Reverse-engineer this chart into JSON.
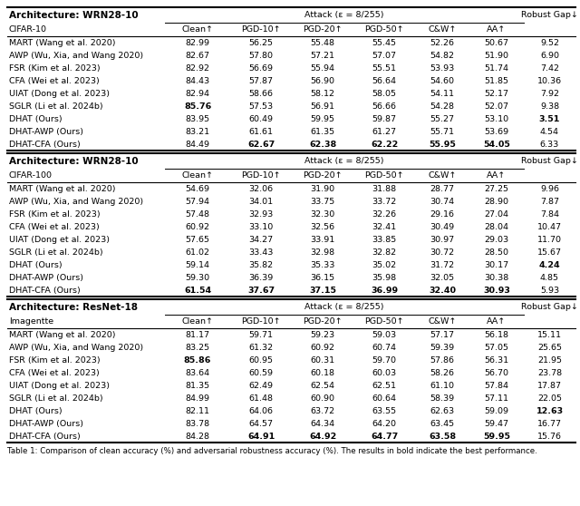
{
  "sections": [
    {
      "arch": "Architecture: WRN28-10",
      "dataset": "CIFAR-10",
      "rows": [
        {
          "method": "MART (Wang et al. 2020)",
          "values": [
            "82.99",
            "56.25",
            "55.48",
            "55.45",
            "52.26",
            "50.67",
            "9.52"
          ],
          "bold": []
        },
        {
          "method": "AWP (Wu, Xia, and Wang 2020)",
          "values": [
            "82.67",
            "57.80",
            "57.21",
            "57.07",
            "54.82",
            "51.90",
            "6.90"
          ],
          "bold": []
        },
        {
          "method": "FSR (Kim et al. 2023)",
          "values": [
            "82.92",
            "56.69",
            "55.94",
            "55.51",
            "53.93",
            "51.74",
            "7.42"
          ],
          "bold": []
        },
        {
          "method": "CFA (Wei et al. 2023)",
          "values": [
            "84.43",
            "57.87",
            "56.90",
            "56.64",
            "54.60",
            "51.85",
            "10.36"
          ],
          "bold": []
        },
        {
          "method": "UIAT (Dong et al. 2023)",
          "values": [
            "82.94",
            "58.66",
            "58.12",
            "58.05",
            "54.11",
            "52.17",
            "7.92"
          ],
          "bold": []
        },
        {
          "method": "SGLR (Li et al. 2024b)",
          "values": [
            "85.76",
            "57.53",
            "56.91",
            "56.66",
            "54.28",
            "52.07",
            "9.38"
          ],
          "bold": [
            0
          ]
        },
        {
          "method": "DHAT (Ours)",
          "values": [
            "83.95",
            "60.49",
            "59.95",
            "59.87",
            "55.27",
            "53.10",
            "3.51"
          ],
          "bold": [
            6
          ]
        },
        {
          "method": "DHAT-AWP (Ours)",
          "values": [
            "83.21",
            "61.61",
            "61.35",
            "61.27",
            "55.71",
            "53.69",
            "4.54"
          ],
          "bold": []
        },
        {
          "method": "DHAT-CFA (Ours)",
          "values": [
            "84.49",
            "62.67",
            "62.38",
            "62.22",
            "55.95",
            "54.05",
            "6.33"
          ],
          "bold": [
            1,
            2,
            3,
            4,
            5
          ]
        }
      ]
    },
    {
      "arch": "Architecture: WRN28-10",
      "dataset": "CIFAR-100",
      "rows": [
        {
          "method": "MART (Wang et al. 2020)",
          "values": [
            "54.69",
            "32.06",
            "31.90",
            "31.88",
            "28.77",
            "27.25",
            "9.96"
          ],
          "bold": []
        },
        {
          "method": "AWP (Wu, Xia, and Wang 2020)",
          "values": [
            "57.94",
            "34.01",
            "33.75",
            "33.72",
            "30.74",
            "28.90",
            "7.87"
          ],
          "bold": []
        },
        {
          "method": "FSR (Kim et al. 2023)",
          "values": [
            "57.48",
            "32.93",
            "32.30",
            "32.26",
            "29.16",
            "27.04",
            "7.84"
          ],
          "bold": []
        },
        {
          "method": "CFA (Wei et al. 2023)",
          "values": [
            "60.92",
            "33.10",
            "32.56",
            "32.41",
            "30.49",
            "28.04",
            "10.47"
          ],
          "bold": []
        },
        {
          "method": "UIAT (Dong et al. 2023)",
          "values": [
            "57.65",
            "34.27",
            "33.91",
            "33.85",
            "30.97",
            "29.03",
            "11.70"
          ],
          "bold": []
        },
        {
          "method": "SGLR (Li et al. 2024b)",
          "values": [
            "61.02",
            "33.43",
            "32.98",
            "32.82",
            "30.72",
            "28.50",
            "15.67"
          ],
          "bold": []
        },
        {
          "method": "DHAT (Ours)",
          "values": [
            "59.14",
            "35.82",
            "35.33",
            "35.02",
            "31.72",
            "30.17",
            "4.24"
          ],
          "bold": [
            6
          ]
        },
        {
          "method": "DHAT-AWP (Ours)",
          "values": [
            "59.30",
            "36.39",
            "36.15",
            "35.98",
            "32.05",
            "30.38",
            "4.85"
          ],
          "bold": []
        },
        {
          "method": "DHAT-CFA (Ours)",
          "values": [
            "61.54",
            "37.67",
            "37.15",
            "36.99",
            "32.40",
            "30.93",
            "5.93"
          ],
          "bold": [
            0,
            1,
            2,
            3,
            4,
            5
          ]
        }
      ]
    },
    {
      "arch": "Architecture: ResNet-18",
      "dataset": "Imagentte",
      "rows": [
        {
          "method": "MART (Wang et al. 2020)",
          "values": [
            "81.17",
            "59.71",
            "59.23",
            "59.03",
            "57.17",
            "56.18",
            "15.11"
          ],
          "bold": []
        },
        {
          "method": "AWP (Wu, Xia, and Wang 2020)",
          "values": [
            "83.25",
            "61.32",
            "60.92",
            "60.74",
            "59.39",
            "57.05",
            "25.65"
          ],
          "bold": []
        },
        {
          "method": "FSR (Kim et al. 2023)",
          "values": [
            "85.86",
            "60.95",
            "60.31",
            "59.70",
            "57.86",
            "56.31",
            "21.95"
          ],
          "bold": [
            0
          ]
        },
        {
          "method": "CFA (Wei et al. 2023)",
          "values": [
            "83.64",
            "60.59",
            "60.18",
            "60.03",
            "58.26",
            "56.70",
            "23.78"
          ],
          "bold": []
        },
        {
          "method": "UIAT (Dong et al. 2023)",
          "values": [
            "81.35",
            "62.49",
            "62.54",
            "62.51",
            "61.10",
            "57.84",
            "17.87"
          ],
          "bold": []
        },
        {
          "method": "SGLR (Li et al. 2024b)",
          "values": [
            "84.99",
            "61.48",
            "60.90",
            "60.64",
            "58.39",
            "57.11",
            "22.05"
          ],
          "bold": []
        },
        {
          "method": "DHAT (Ours)",
          "values": [
            "82.11",
            "64.06",
            "63.72",
            "63.55",
            "62.63",
            "59.09",
            "12.63"
          ],
          "bold": [
            6
          ]
        },
        {
          "method": "DHAT-AWP (Ours)",
          "values": [
            "83.78",
            "64.57",
            "64.34",
            "64.20",
            "63.45",
            "59.47",
            "16.77"
          ],
          "bold": []
        },
        {
          "method": "DHAT-CFA (Ours)",
          "values": [
            "84.28",
            "64.91",
            "64.92",
            "64.77",
            "63.58",
            "59.95",
            "15.76"
          ],
          "bold": [
            1,
            2,
            3,
            4,
            5
          ]
        }
      ]
    }
  ],
  "col_headers": [
    "Clean↑",
    "PGD-10↑",
    "PGD-20↑",
    "PGD-50↑",
    "C&W↑",
    "AA↑"
  ],
  "attack_label": "Attack (ε = 8/255)",
  "robust_gap_label": "Robust Gap↓",
  "caption": "Table 1: Comparison of clean accuracy (%) and adversarial robustness accuracy (%). The results in bold indicate the best performance."
}
